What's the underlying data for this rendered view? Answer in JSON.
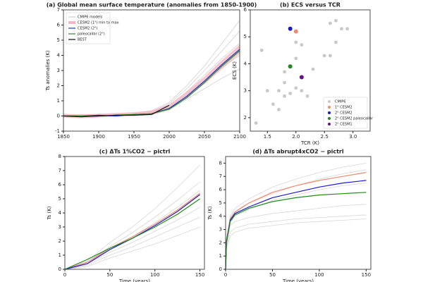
{
  "chart_data": [
    {
      "type": "line",
      "title": "(a) Global mean surface temperature (anomalies from 1850-1900)",
      "ylabel": "Ts anomalies (K)",
      "x": [
        1850,
        1875,
        1900,
        1925,
        1950,
        1975,
        2000,
        2025,
        2050,
        2075,
        2100
      ],
      "xlim": [
        1850,
        2100
      ],
      "xticks": [
        1850,
        1900,
        1950,
        2000,
        2050,
        2100
      ],
      "ylim": [
        -1,
        7
      ],
      "yticks": [
        -1,
        0,
        1,
        2,
        3,
        4,
        5,
        6,
        7
      ],
      "legend": "upper left",
      "ensemble": {
        "name": "CMIP6 models",
        "color": "#cfcfcf",
        "members": [
          [
            0,
            0,
            0,
            0.05,
            0.1,
            0.2,
            0.6,
            1.4,
            2.3,
            3.2,
            4.0
          ],
          [
            0,
            0.05,
            0.05,
            0.1,
            0.2,
            0.3,
            0.8,
            1.8,
            3.0,
            4.3,
            5.6
          ],
          [
            0,
            -0.05,
            0,
            0,
            0.05,
            0.1,
            0.4,
            1.1,
            1.8,
            2.5,
            3.1
          ],
          [
            0,
            0,
            0.05,
            0.1,
            0.15,
            0.25,
            0.7,
            1.6,
            2.7,
            3.8,
            4.8
          ],
          [
            0,
            0.1,
            0.05,
            0.15,
            0.2,
            0.35,
            0.9,
            2.0,
            3.3,
            4.8,
            6.3
          ]
        ]
      },
      "band": {
        "name": "CESM2 (1°) min to max",
        "color": "#f4b6c2",
        "lower": [
          -0.1,
          -0.15,
          -0.1,
          -0.05,
          0,
          0.05,
          0.4,
          1.2,
          2.1,
          3.1,
          4.1
        ],
        "upper": [
          0.15,
          0.1,
          0.15,
          0.2,
          0.25,
          0.35,
          0.75,
          1.6,
          2.6,
          3.7,
          4.7
        ]
      },
      "series": [
        {
          "name": "CESM2 (2°)",
          "color": "#2233cc",
          "values": [
            0,
            0,
            0.05,
            0,
            0.1,
            0.15,
            0.5,
            1.3,
            2.3,
            3.4,
            4.4
          ]
        },
        {
          "name": "paleocalibr (2°)",
          "color": "#2e8b2e",
          "values": [
            0,
            0,
            0,
            0.05,
            0.1,
            0.15,
            0.45,
            1.2,
            2.2,
            3.3,
            4.3
          ]
        },
        {
          "name": "BEST",
          "color": "#111111",
          "values": [
            0,
            -0.05,
            0,
            0.05,
            0.05,
            0.1,
            0.7,
            null,
            null,
            null,
            null
          ]
        }
      ]
    },
    {
      "type": "scatter",
      "title": "(b) ECS versus TCR",
      "xlabel": "TCR (K)",
      "ylabel": "ECS (K)",
      "xlim": [
        1.2,
        3.3
      ],
      "xticks": [
        {
          "value": 1.5,
          "label": "1.5"
        },
        {
          "value": 2,
          "label": "2.0"
        },
        {
          "value": 2.5,
          "label": "2.5"
        },
        {
          "value": 3,
          "label": "3.0"
        }
      ],
      "ylim": [
        1.5,
        6
      ],
      "yticks": [
        2,
        3,
        4,
        5,
        6
      ],
      "legend": "lower right",
      "series": [
        {
          "name": "CMIP6",
          "color": "#c8c8c8",
          "x": [
            1.3,
            1.4,
            1.6,
            1.7,
            1.7,
            1.8,
            1.8,
            1.8,
            1.9,
            2.0,
            2.0,
            2.1,
            2.1,
            2.2,
            2.3,
            2.5,
            2.6,
            2.6,
            2.7,
            2.7,
            2.8,
            2.9,
            1.5,
            2.0
          ],
          "y": [
            1.8,
            4.5,
            2.5,
            3.0,
            2.3,
            2.8,
            3.3,
            3.7,
            2.9,
            3.1,
            4.2,
            3.0,
            4.7,
            2.8,
            3.8,
            4.3,
            4.3,
            5.5,
            5.6,
            4.8,
            5.3,
            5.3,
            3.0,
            4.8
          ]
        },
        {
          "name": "1° CESM2",
          "color": "#f08a70",
          "x": [
            2.0
          ],
          "y": [
            5.2
          ]
        },
        {
          "name": "2° CESM2",
          "color": "#1a1acc",
          "x": [
            1.9
          ],
          "y": [
            5.3
          ]
        },
        {
          "name": "2° CESM2 paleocalibr",
          "color": "#1f8a1f",
          "x": [
            1.9
          ],
          "y": [
            3.9
          ]
        },
        {
          "name": "2° CESM1",
          "color": "#6a0f8e",
          "x": [
            2.1
          ],
          "y": [
            3.5
          ]
        }
      ]
    },
    {
      "type": "line",
      "title": "(c) ΔTs 1%CO2 − pictrl",
      "xlabel": "Time (years)",
      "ylabel": "Ts (K)",
      "x": [
        0,
        25,
        50,
        75,
        100,
        125,
        150
      ],
      "xlim": [
        0,
        155
      ],
      "xticks": [
        0,
        50,
        100,
        150
      ],
      "ylim": [
        0,
        8
      ],
      "yticks": [
        0,
        1,
        2,
        3,
        4,
        5,
        6,
        7,
        8
      ],
      "ensemble": {
        "color": "#d6d6d6",
        "members": [
          [
            0,
            0.3,
            1.0,
            1.6,
            2.3,
            3.0,
            3.7
          ],
          [
            0,
            0.5,
            1.6,
            2.6,
            3.7,
            4.9,
            6.2
          ],
          [
            0,
            0.6,
            1.9,
            3.0,
            4.3,
            5.8,
            7.4
          ],
          [
            0,
            0.4,
            1.2,
            1.9,
            2.7,
            3.5,
            4.4
          ],
          [
            0,
            0.2,
            0.8,
            1.3,
            1.8,
            2.4,
            3.0
          ],
          [
            0,
            0.5,
            1.4,
            2.3,
            3.3,
            4.4,
            5.6
          ]
        ]
      },
      "series": [
        {
          "color": "#f08a70",
          "values": [
            0,
            0.5,
            1.5,
            2.3,
            3.2,
            4.2,
            5.4
          ]
        },
        {
          "color": "#1a1acc",
          "values": [
            0,
            0.4,
            1.4,
            2.2,
            3.1,
            4.1,
            5.3
          ]
        },
        {
          "color": "#1f8a1f",
          "values": [
            0,
            0.7,
            1.5,
            2.2,
            3.0,
            3.9,
            5.0
          ]
        }
      ]
    },
    {
      "type": "line",
      "title": "(d) ΔTs abrupt4xCO2 − pictrl",
      "xlabel": "Time (years)",
      "ylabel": "Ts (K)",
      "x": [
        0,
        1,
        5,
        10,
        25,
        50,
        75,
        100,
        125,
        150
      ],
      "xlim": [
        0,
        155
      ],
      "xticks": [
        0,
        50,
        100,
        150
      ],
      "ylim": [
        0,
        8.5
      ],
      "yticks": [
        0,
        1,
        2,
        3,
        4,
        5,
        6,
        7,
        8
      ],
      "ensemble": {
        "color": "#d6d6d6",
        "members": [
          [
            0,
            2.0,
            3.3,
            3.6,
            3.9,
            4.2,
            4.4,
            4.6,
            4.8,
            4.9
          ],
          [
            0,
            2.4,
            4.0,
            4.6,
            5.3,
            6.2,
            6.8,
            7.3,
            7.7,
            8.0
          ],
          [
            0,
            1.7,
            2.8,
            3.1,
            3.4,
            3.6,
            3.8,
            3.9,
            4.0,
            4.1
          ],
          [
            0,
            2.2,
            3.6,
            4.0,
            4.5,
            5.2,
            5.6,
            6.0,
            6.3,
            6.5
          ],
          [
            0,
            1.6,
            2.5,
            2.8,
            3.1,
            3.3,
            3.5,
            3.6,
            3.7,
            3.8
          ],
          [
            0,
            2.3,
            3.9,
            4.4,
            5.0,
            5.7,
            6.3,
            6.8,
            7.2,
            7.5
          ]
        ]
      },
      "series": [
        {
          "color": "#f08a70",
          "values": [
            0,
            2.2,
            3.8,
            4.3,
            5.0,
            5.8,
            6.3,
            6.7,
            7.0,
            7.3
          ]
        },
        {
          "color": "#1a1acc",
          "values": [
            0,
            2.1,
            3.7,
            4.2,
            4.7,
            5.4,
            5.8,
            6.2,
            6.5,
            6.7
          ]
        },
        {
          "color": "#1f8a1f",
          "values": [
            0,
            2.0,
            3.6,
            4.1,
            4.6,
            5.1,
            5.4,
            5.6,
            5.7,
            5.8
          ]
        }
      ]
    }
  ]
}
